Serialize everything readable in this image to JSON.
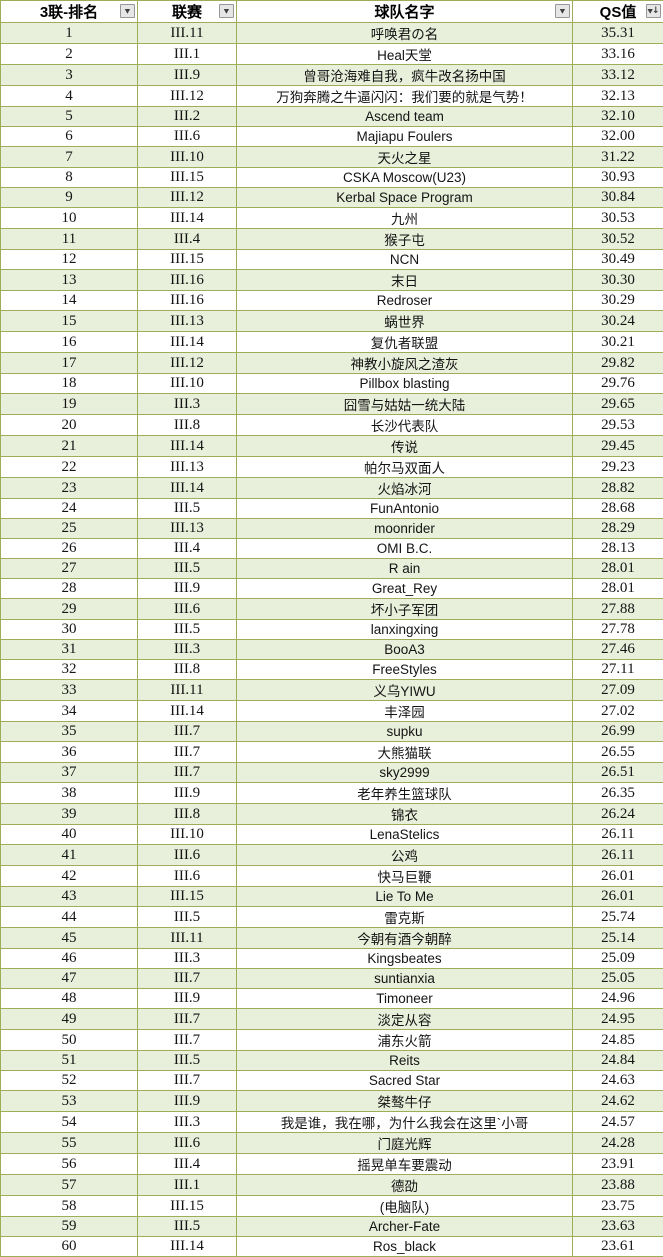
{
  "colors": {
    "grid_border": "#9fad58",
    "row_stripe_green": "#e8efda",
    "row_white": "#ffffff",
    "header_bg": "#ffffff",
    "filter_button_bg": "#e6e6e6",
    "filter_button_border": "#979797",
    "text": "#141414"
  },
  "table": {
    "columns": [
      {
        "id": "rank",
        "label": "3联-排名",
        "icon": "filter-dropdown-icon",
        "sorted": false
      },
      {
        "id": "league",
        "label": "联赛",
        "icon": "filter-dropdown-icon",
        "sorted": false
      },
      {
        "id": "team",
        "label": "球队名字",
        "icon": "filter-dropdown-icon",
        "sorted": false
      },
      {
        "id": "qs",
        "label": "QS值",
        "icon": "filter-sort-desc-icon",
        "sorted": true
      }
    ],
    "rows": [
      [
        "1",
        "III.11",
        "呼唤君の名",
        "35.31"
      ],
      [
        "2",
        "III.1",
        "Heal天堂",
        "33.16"
      ],
      [
        "3",
        "III.9",
        "曾哥沧海难自我，疯牛改名扬中国",
        "33.12"
      ],
      [
        "4",
        "III.12",
        "万狗奔腾之牛逼闪闪：我们要的就是气势！",
        "32.13"
      ],
      [
        "5",
        "III.2",
        "Ascend team",
        "32.10"
      ],
      [
        "6",
        "III.6",
        "Majiapu Foulers",
        "32.00"
      ],
      [
        "7",
        "III.10",
        "天火之星",
        "31.22"
      ],
      [
        "8",
        "III.15",
        "CSKA Moscow(U23)",
        "30.93"
      ],
      [
        "9",
        "III.12",
        "Kerbal Space Program",
        "30.84"
      ],
      [
        "10",
        "III.14",
        "九州",
        "30.53"
      ],
      [
        "11",
        "III.4",
        "猴子屯",
        "30.52"
      ],
      [
        "12",
        "III.15",
        "NCN",
        "30.49"
      ],
      [
        "13",
        "III.16",
        "末日",
        "30.30"
      ],
      [
        "14",
        "III.16",
        "Redroser",
        "30.29"
      ],
      [
        "15",
        "III.13",
        "蜗世界",
        "30.24"
      ],
      [
        "16",
        "III.14",
        "复仇者联盟",
        "30.21"
      ],
      [
        "17",
        "III.12",
        "神教小旋风之渣灰",
        "29.82"
      ],
      [
        "18",
        "III.10",
        "Pillbox blasting",
        "29.76"
      ],
      [
        "19",
        "III.3",
        "囧雪与姑姑一统大陆",
        "29.65"
      ],
      [
        "20",
        "III.8",
        "长沙代表队",
        "29.53"
      ],
      [
        "21",
        "III.14",
        "传说",
        "29.45"
      ],
      [
        "22",
        "III.13",
        "帕尔马双面人",
        "29.23"
      ],
      [
        "23",
        "III.14",
        "火焰冰河",
        "28.82"
      ],
      [
        "24",
        "III.5",
        "FunAntonio",
        "28.68"
      ],
      [
        "25",
        "III.13",
        "moonrider",
        "28.29"
      ],
      [
        "26",
        "III.4",
        "OMI B.C.",
        "28.13"
      ],
      [
        "27",
        "III.5",
        "R ain",
        "28.01"
      ],
      [
        "28",
        "III.9",
        "Great_Rey",
        "28.01"
      ],
      [
        "29",
        "III.6",
        "坏小子军团",
        "27.88"
      ],
      [
        "30",
        "III.5",
        "lanxingxing",
        "27.78"
      ],
      [
        "31",
        "III.3",
        "BooA3",
        "27.46"
      ],
      [
        "32",
        "III.8",
        "FreeStyles",
        "27.11"
      ],
      [
        "33",
        "III.11",
        "义乌YIWU",
        "27.09"
      ],
      [
        "34",
        "III.14",
        "丰泽园",
        "27.02"
      ],
      [
        "35",
        "III.7",
        "supku",
        "26.99"
      ],
      [
        "36",
        "III.7",
        "大熊猫联",
        "26.55"
      ],
      [
        "37",
        "III.7",
        "sky2999",
        "26.51"
      ],
      [
        "38",
        "III.9",
        "老年养生篮球队",
        "26.35"
      ],
      [
        "39",
        "III.8",
        "锦衣",
        "26.24"
      ],
      [
        "40",
        "III.10",
        "LenaStelics",
        "26.11"
      ],
      [
        "41",
        "III.6",
        "公鸡",
        "26.11"
      ],
      [
        "42",
        "III.6",
        "快马巨鞭",
        "26.01"
      ],
      [
        "43",
        "III.15",
        "Lie To Me",
        "26.01"
      ],
      [
        "44",
        "III.5",
        "雷克斯",
        "25.74"
      ],
      [
        "45",
        "III.11",
        "今朝有酒今朝醉",
        "25.14"
      ],
      [
        "46",
        "III.3",
        "Kingsbeates",
        "25.09"
      ],
      [
        "47",
        "III.7",
        "suntianxia",
        "25.05"
      ],
      [
        "48",
        "III.9",
        "Timoneer",
        "24.96"
      ],
      [
        "49",
        "III.7",
        "淡定从容",
        "24.95"
      ],
      [
        "50",
        "III.7",
        "浦东火箭",
        "24.85"
      ],
      [
        "51",
        "III.5",
        "Reits",
        "24.84"
      ],
      [
        "52",
        "III.7",
        "Sacred Star",
        "24.63"
      ],
      [
        "53",
        "III.9",
        "桀骜牛仔",
        "24.62"
      ],
      [
        "54",
        "III.3",
        "我是谁，我在哪，为什么我会在这里`小哥",
        "24.57"
      ],
      [
        "55",
        "III.6",
        "门庭光辉",
        "24.28"
      ],
      [
        "56",
        "III.4",
        "摇晃单车要震动",
        "23.91"
      ],
      [
        "57",
        "III.1",
        "德劭",
        "23.88"
      ],
      [
        "58",
        "III.15",
        "(电脑队)",
        "23.75"
      ],
      [
        "59",
        "III.5",
        "Archer-Fate",
        "23.63"
      ],
      [
        "60",
        "III.14",
        "Ros_black",
        "23.61"
      ]
    ]
  }
}
